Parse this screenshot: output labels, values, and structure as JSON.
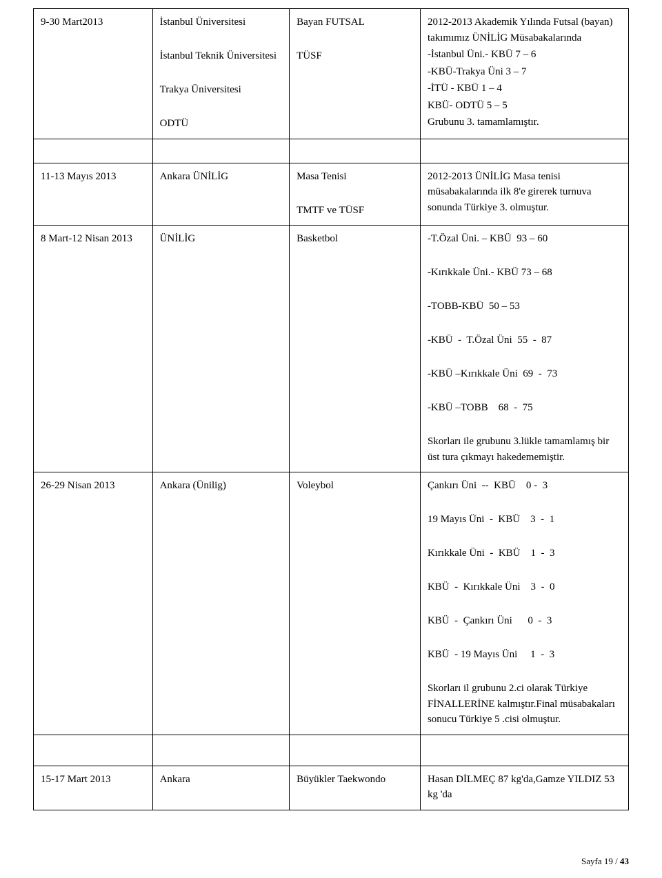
{
  "rows": [
    {
      "date": "9-30 Mart2013",
      "col2_lines": [
        "İstanbul Üniversitesi",
        "",
        "İstanbul Teknik Üniversitesi",
        "",
        "Trakya Üniversitesi",
        "",
        "ODTÜ"
      ],
      "col3_lines": [
        "Bayan FUTSAL",
        "",
        "TÜSF"
      ],
      "col4_lines": [
        "2012-2013 Akademik Yılında Futsal (bayan) takımımız ÜNİLİG Müsabakalarında",
        "-İstanbul Üni.- KBÜ 7 – 6",
        "-KBÜ-Trakya Üni 3 – 7",
        "-İTÜ - KBÜ 1 – 4",
        "KBÜ- ODTÜ 5 – 5",
        "Grubunu 3. tamamlamıştır."
      ]
    },
    {
      "date": "11-13 Mayıs 2013",
      "col2_lines": [
        "Ankara ÜNİLİG"
      ],
      "col3_lines": [
        "Masa Tenisi",
        "",
        "TMTF ve TÜSF"
      ],
      "col4_lines": [
        "2012-2013 ÜNİLİG Masa tenisi müsabakalarında ilk 8'e girerek turnuva sonunda Türkiye 3. olmuştur."
      ]
    },
    {
      "date": "8 Mart-12 Nisan 2013",
      "col2_lines": [
        "ÜNİLİG"
      ],
      "col3_lines": [
        "Basketbol"
      ],
      "col4_lines": [
        "-T.Özal Üni. – KBÜ  93 – 60",
        "",
        "-Kırıkkale Üni.- KBÜ 73 – 68",
        "",
        "-TOBB-KBÜ  50 – 53",
        "",
        "-KBÜ  -  T.Özal Üni  55  -  87",
        "",
        "-KBÜ –Kırıkkale Üni  69  -  73",
        "",
        "-KBÜ –TOBB    68  -  75",
        "",
        "Skorları ile grubunu 3.lükle tamamlamış bir üst tura çıkmayı hakedememiştir."
      ]
    },
    {
      "date": "26-29 Nisan 2013",
      "col2_lines": [
        "Ankara (Ünilig)"
      ],
      "col3_lines": [
        "Voleybol"
      ],
      "col4_lines": [
        "Çankırı Üni  --  KBÜ    0 -  3",
        "",
        "19 Mayıs Üni  -  KBÜ    3  -  1",
        "",
        "Kırıkkale Üni  -  KBÜ    1  -  3",
        "",
        "KBÜ  -  Kırıkkale Üni    3  -  0",
        "",
        "KBÜ  -  Çankırı Üni      0  -  3",
        "",
        "KBÜ  - 19 Mayıs Üni     1  -  3",
        "",
        "Skorları il grubunu 2.ci olarak Türkiye FİNALLERİNE kalmıştır.Final müsabakaları sonucu Türkiye 5 .cisi olmuştur."
      ]
    },
    {
      "date": "15-17 Mart 2013",
      "col2_lines": [
        "Ankara"
      ],
      "col3_lines": [
        "Büyükler Taekwondo"
      ],
      "col4_lines": [
        "Hasan DİLMEÇ 87 kg'da,Gamze YILDIZ 53 kg 'da"
      ]
    }
  ],
  "footer": {
    "prefix": "Sayfa ",
    "page": "19",
    "sep": " / ",
    "total": "43"
  }
}
